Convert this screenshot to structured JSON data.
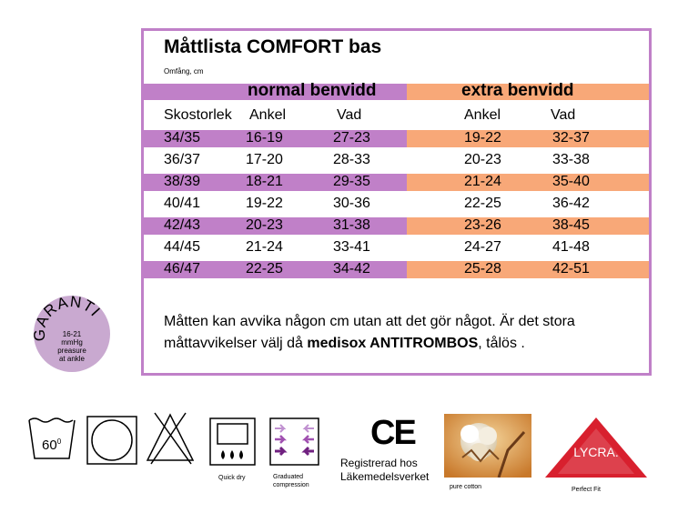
{
  "colors": {
    "purple": "#c080c8",
    "orange": "#f8a878"
  },
  "title": "Måttlista COMFORT bas",
  "subtitle": "Omfång, cm",
  "headers": {
    "normal": "normal benvidd",
    "extra": "extra benvidd"
  },
  "columns": {
    "size": "Skostorlek",
    "ankle": "Ankel",
    "calf": "Vad",
    "ankle_x": "Ankel",
    "calf_x": "Vad"
  },
  "rows": [
    [
      "34/35",
      "16-19",
      "27-23",
      "19-22",
      "32-37"
    ],
    [
      "36/37",
      "17-20",
      "28-33",
      "20-23",
      "33-38"
    ],
    [
      "38/39",
      "18-21",
      "29-35",
      "21-24",
      "35-40"
    ],
    [
      "40/41",
      "19-22",
      "30-36",
      "22-25",
      "36-42"
    ],
    [
      "42/43",
      "20-23",
      "31-38",
      "23-26",
      "38-45"
    ],
    [
      "44/45",
      "21-24",
      "33-41",
      "24-27",
      "41-48"
    ],
    [
      "46/47",
      "22-25",
      "34-42",
      "25-28",
      "42-51"
    ]
  ],
  "note": {
    "part1": "Måtten kan avvika någon cm utan att det gör något. Är det stora måttavvikelser välj då ",
    "brand": "medisox ANTITROMBOS",
    "part2": ", tålös ."
  },
  "seal": {
    "arc": "GARANTI",
    "line1": "16-21",
    "line2": "mmHg",
    "line3": "preasure",
    "line4": "at ankle"
  },
  "care": {
    "wash": "60",
    "wash_unit": "0"
  },
  "captions": {
    "quick_dry": "Quick dry",
    "graduated": "Graduated\ncompression",
    "ce": "CE",
    "registered": "Registrerad hos\nLäkemedelsverket",
    "pure_cotton": "pure cotton",
    "lycra": "LYCRA.",
    "perfect_fit": "Perfect Fit"
  }
}
